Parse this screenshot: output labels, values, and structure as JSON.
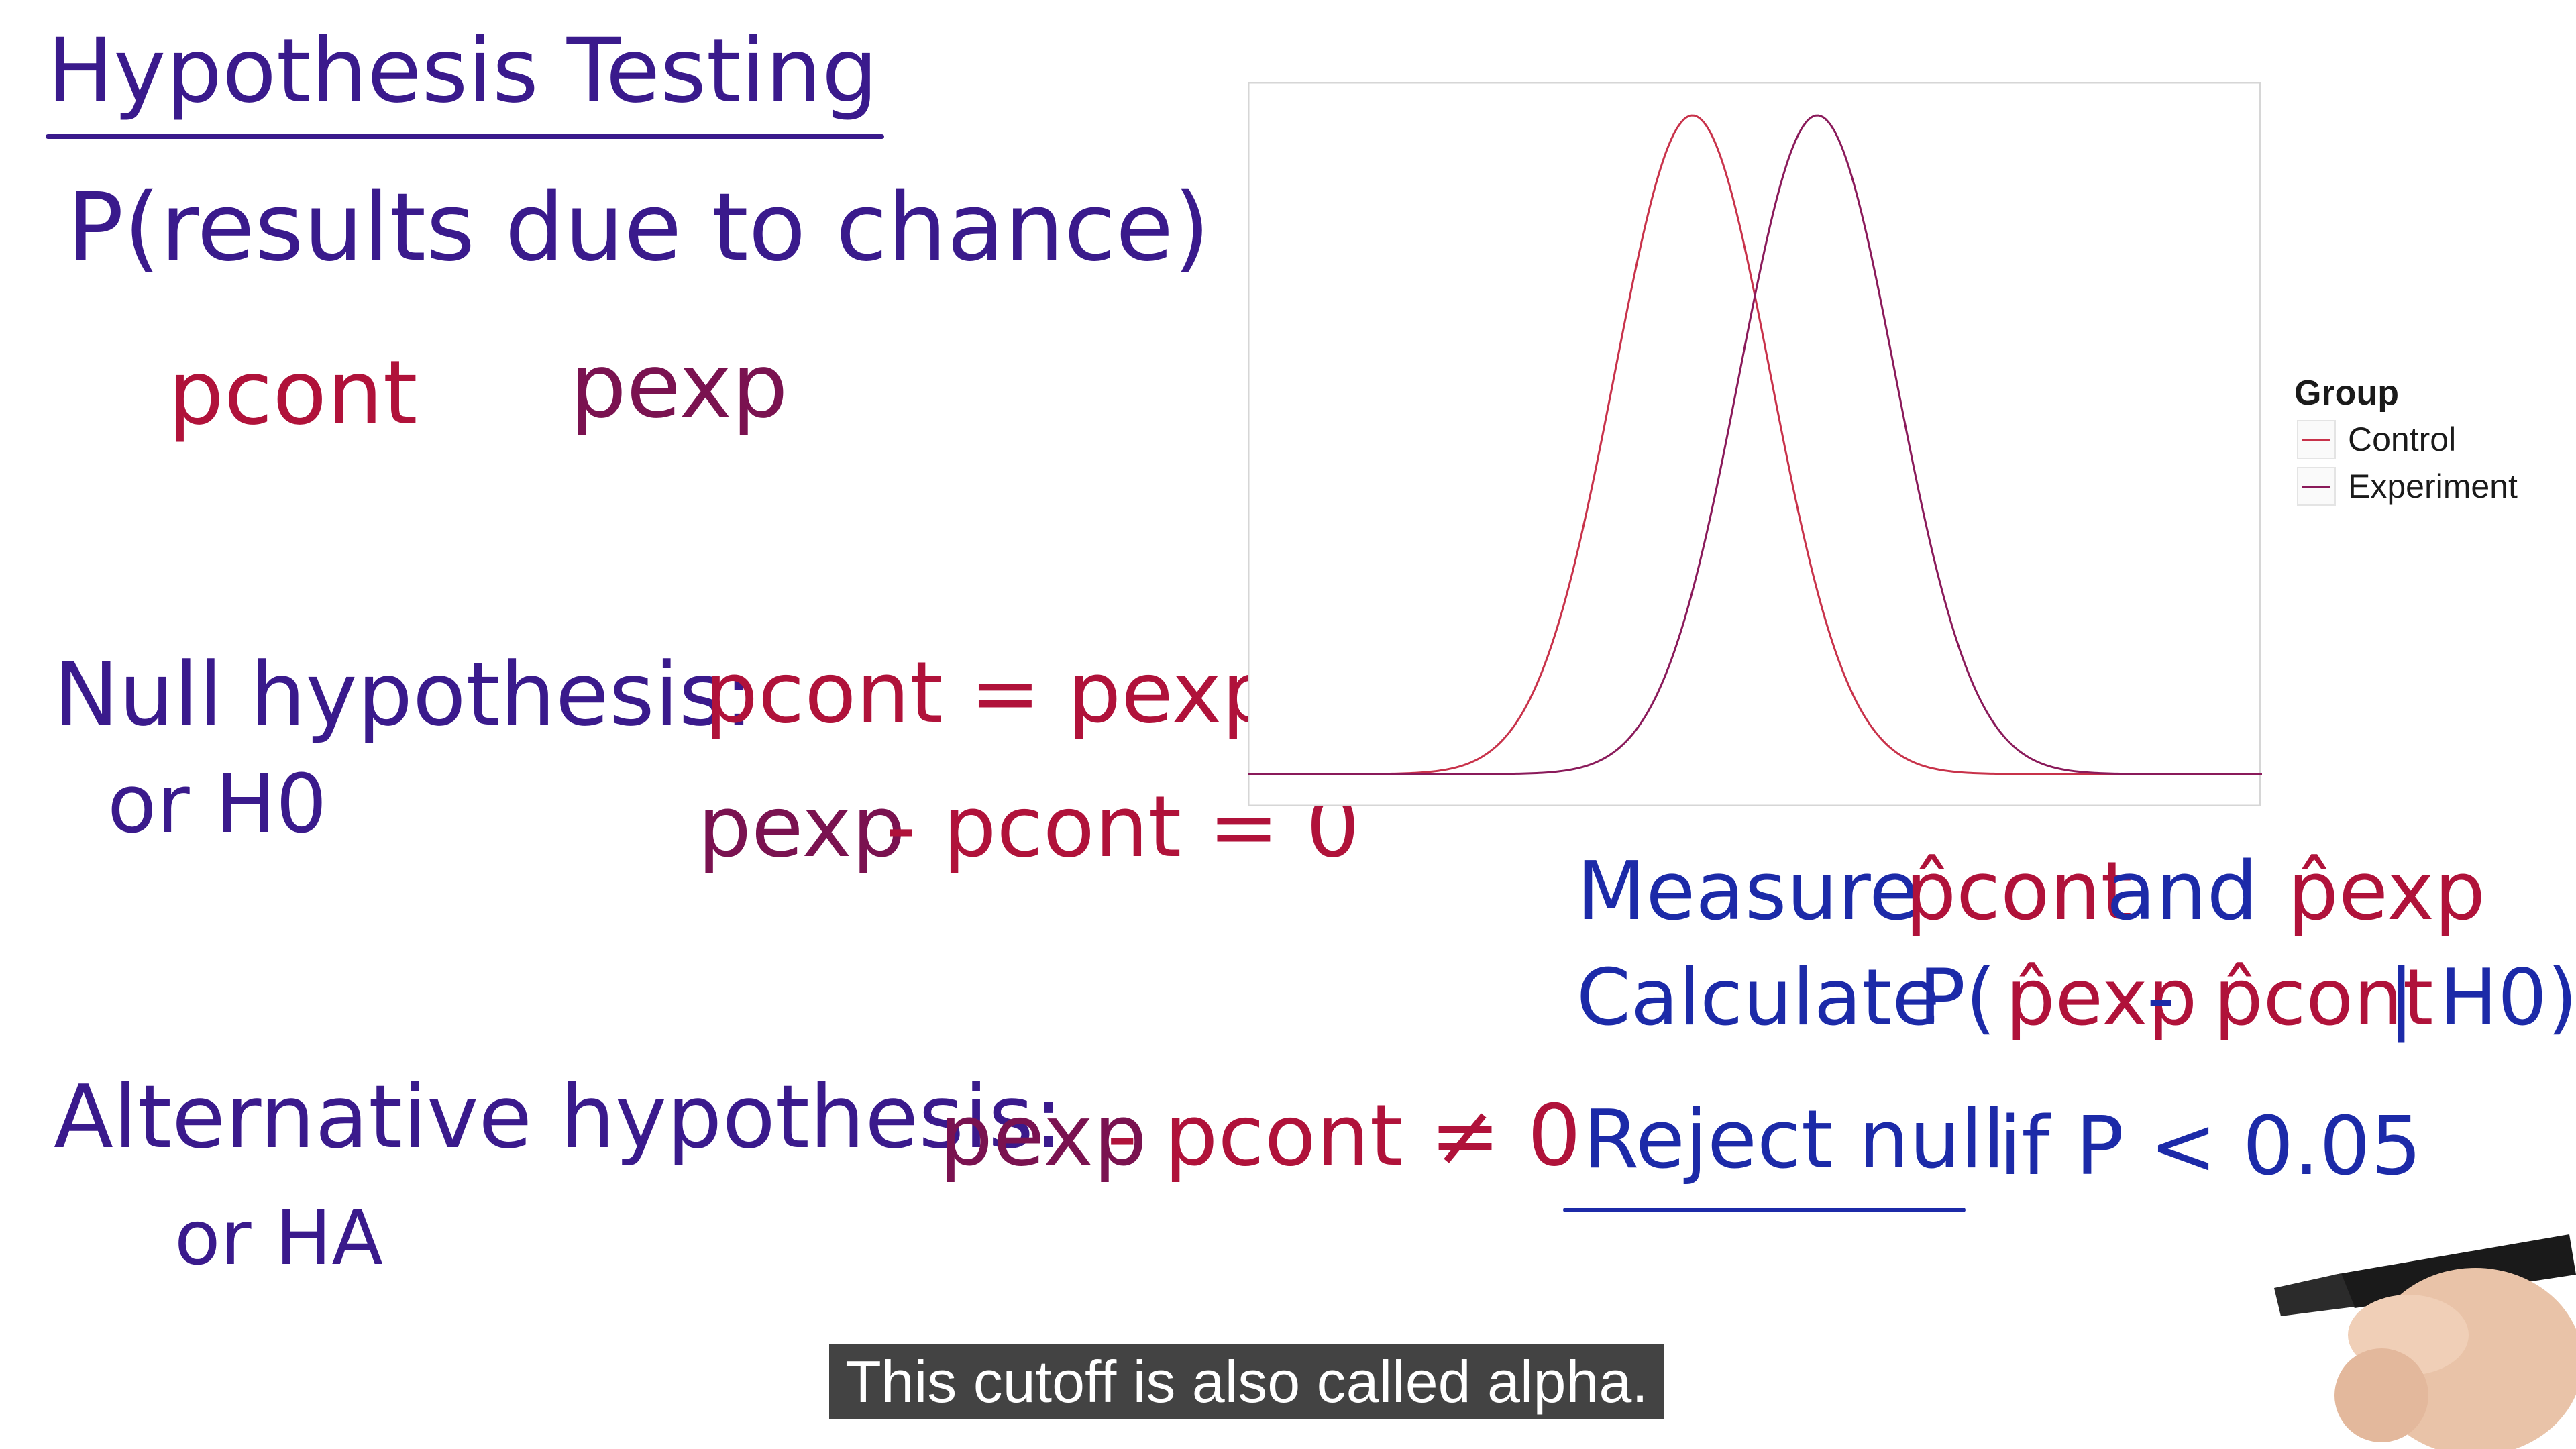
{
  "title": "Hypothesis Testing",
  "definition": "P(results due to chance)",
  "p_cont_label": "pcont",
  "p_exp_label": "pexp",
  "null": {
    "label": "Null hypothesis:",
    "alt_name": "or H0",
    "eq1": "pcont = pexp",
    "eq2_left": "pexp",
    "eq2_right": "- pcont = 0"
  },
  "alternative": {
    "label": "Alternative hypothesis:",
    "alt_name": "or HA",
    "eq_left": "pexp",
    "eq_right": "- pcont ≠ 0"
  },
  "steps": {
    "measure": "Measure",
    "measure_p_cont": "p̂cont",
    "measure_and": "and",
    "measure_p_exp": "p̂exp",
    "calculate": "Calculate",
    "calc_p_open": "P(",
    "calc_p_exp": "p̂exp",
    "calc_minus": " - ",
    "calc_p_cont": "p̂cont",
    "calc_close": " | H0)",
    "reject": "Reject null",
    "reject_rest": "if P < 0.05"
  },
  "caption": "This cutoff is also called alpha.",
  "chart_data": {
    "type": "line",
    "legend_title": "Group",
    "legend_position": "right",
    "series": [
      {
        "name": "Control",
        "mean": -0.8,
        "sd": 1.0,
        "color": "#c8324a"
      },
      {
        "name": "Experiment",
        "mean": 0.8,
        "sd": 1.0,
        "color": "#8a1a5a"
      }
    ],
    "xlim": [
      -6.5,
      6.5
    ],
    "grid": false
  },
  "colors": {
    "purple_ink": "#3a1a8c",
    "red_ink": "#b0123a",
    "blue_ink": "#1c2aa8"
  }
}
